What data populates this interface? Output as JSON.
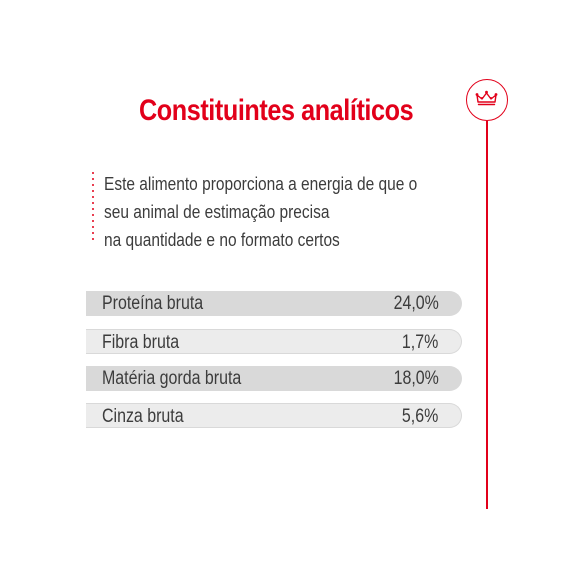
{
  "title": "Constituintes analíticos",
  "intro": {
    "lines": [
      "Este alimento proporciona a energia de que o",
      "seu animal de estimação precisa",
      "na quantidade e no formato certos"
    ]
  },
  "analytics": [
    {
      "label": "Proteína bruta",
      "value": "24,0%"
    },
    {
      "label": "Fibra bruta",
      "value": "1,7%"
    },
    {
      "label": "Matéria gorda bruta",
      "value": "18,0%"
    },
    {
      "label": "Cinza bruta",
      "value": "5,6%"
    }
  ],
  "icons": {
    "badge": "crown-icon"
  },
  "colors": {
    "accent": "#e2001a",
    "text": "#3c3c3c",
    "row_dark": "#d9d9d9",
    "row_light": "#ececec",
    "row_border": "#d9d9d9"
  }
}
